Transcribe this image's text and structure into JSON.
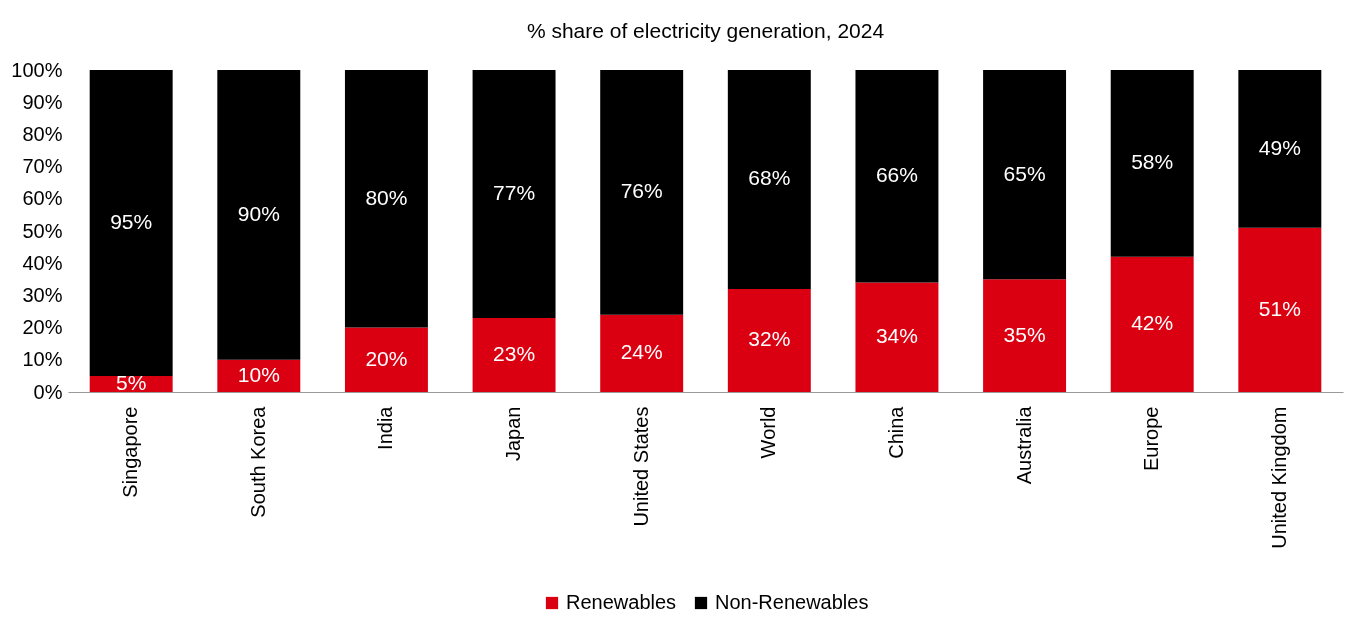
{
  "chart_data": {
    "type": "bar",
    "stacked": true,
    "title": "% share of electricity generation, 2024",
    "categories": [
      "Singapore",
      "South Korea",
      "India",
      "Japan",
      "United States",
      "World",
      "China",
      "Australia",
      "Europe",
      "United Kingdom"
    ],
    "series": [
      {
        "name": "Renewables",
        "color": "#db0011",
        "values": [
          5,
          10,
          20,
          23,
          24,
          32,
          34,
          35,
          42,
          51
        ],
        "value_labels": [
          "5%",
          "10%",
          "20%",
          "23%",
          "24%",
          "32%",
          "34%",
          "35%",
          "42%",
          "51%"
        ]
      },
      {
        "name": "Non-Renewables",
        "color": "#000000",
        "values": [
          95,
          90,
          80,
          77,
          76,
          68,
          66,
          65,
          58,
          49
        ],
        "value_labels": [
          "95%",
          "90%",
          "80%",
          "77%",
          "76%",
          "68%",
          "66%",
          "65%",
          "58%",
          "49%"
        ]
      }
    ],
    "ylim": [
      0,
      100
    ],
    "yticks": [
      {
        "value": 0,
        "label": "0%"
      },
      {
        "value": 10,
        "label": "10%"
      },
      {
        "value": 20,
        "label": "20%"
      },
      {
        "value": 30,
        "label": "30%"
      },
      {
        "value": 40,
        "label": "40%"
      },
      {
        "value": 50,
        "label": "50%"
      },
      {
        "value": 60,
        "label": "60%"
      },
      {
        "value": 70,
        "label": "70%"
      },
      {
        "value": 80,
        "label": "80%"
      },
      {
        "value": 90,
        "label": "90%"
      },
      {
        "value": 100,
        "label": "100%"
      }
    ],
    "grid": false,
    "legend": "bottom"
  }
}
